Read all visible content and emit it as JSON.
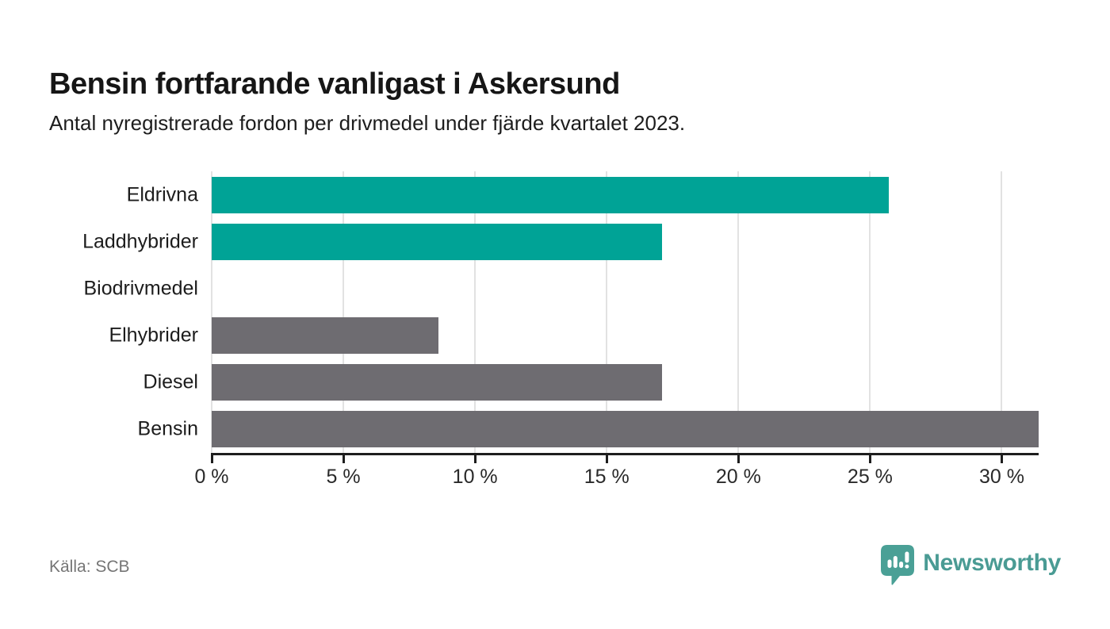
{
  "header": {
    "title": "Bensin fortfarande vanligast i Askersund",
    "subtitle": "Antal nyregistrerade fordon per drivmedel under fjärde kvartalet 2023."
  },
  "chart_data": {
    "type": "bar",
    "orientation": "horizontal",
    "title": "Bensin fortfarande vanligast i Askersund",
    "subtitle": "Antal nyregistrerade fordon per drivmedel under fjärde kvartalet 2023.",
    "categories": [
      "Eldrivna",
      "Laddhybrider",
      "Biodrivmedel",
      "Elhybrider",
      "Diesel",
      "Bensin"
    ],
    "values": [
      25.7,
      17.1,
      0,
      8.6,
      17.1,
      31.4
    ],
    "unit": "%",
    "xlim": [
      0,
      31.4
    ],
    "x_ticks": [
      0,
      5,
      10,
      15,
      20,
      25,
      30
    ],
    "x_tick_labels": [
      "0 %",
      "5 %",
      "10 %",
      "15 %",
      "20 %",
      "25 %",
      "30 %"
    ],
    "bar_colors": [
      "#00A396",
      "#00A396",
      "#00A396",
      "#6E6C71",
      "#6E6C71",
      "#6E6C71"
    ],
    "colors": {
      "highlight": "#00A396",
      "default": "#6E6C71",
      "gridline": "#E2E2E2",
      "axis": "#1E1E1E"
    },
    "grid": true,
    "legend": false
  },
  "footer": {
    "source": "Källa: SCB",
    "brand": "Newsworthy",
    "brand_color": "#4A9B94",
    "logo_icon": "speech-bubble-bar-chart-icon"
  }
}
